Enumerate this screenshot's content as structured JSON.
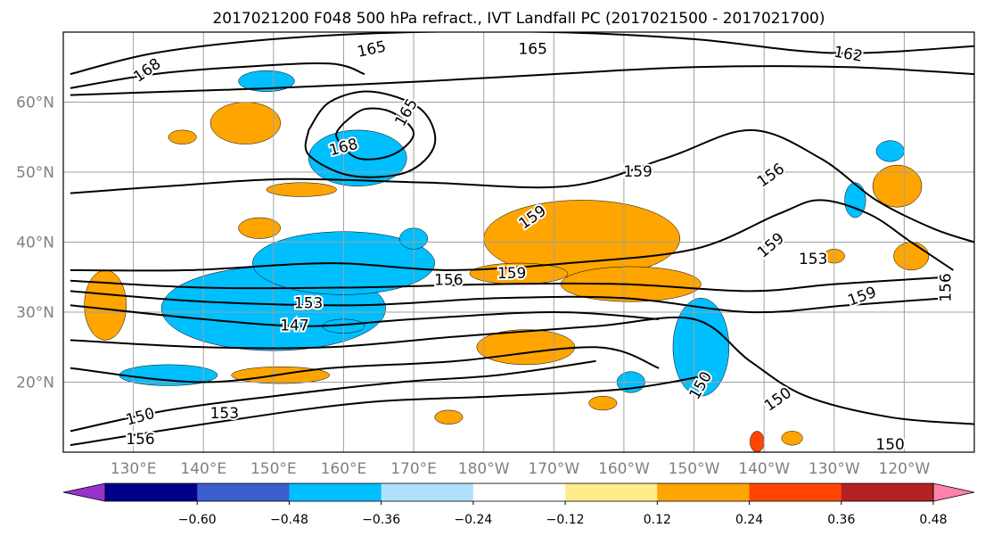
{
  "chart_data": {
    "type": "heatmap",
    "title": "2017021200 F048 500 hPa refract., IVT Landfall PC (2017021500 - 2017021700)",
    "map": {
      "projection": "equirectangular",
      "lon_range": [
        120,
        250
      ],
      "lat_range": [
        10,
        70
      ],
      "grid": true
    },
    "lat_ticks": [
      {
        "value": 60,
        "label": "60°N"
      },
      {
        "value": 50,
        "label": "50°N"
      },
      {
        "value": 40,
        "label": "40°N"
      },
      {
        "value": 30,
        "label": "30°N"
      },
      {
        "value": 20,
        "label": "20°N"
      }
    ],
    "lon_ticks": [
      {
        "value": 130,
        "label": "130°E"
      },
      {
        "value": 140,
        "label": "140°E"
      },
      {
        "value": 150,
        "label": "150°E"
      },
      {
        "value": 160,
        "label": "160°E"
      },
      {
        "value": 170,
        "label": "170°E"
      },
      {
        "value": 180,
        "label": "180°W"
      },
      {
        "value": 190,
        "label": "170°W"
      },
      {
        "value": 200,
        "label": "160°W"
      },
      {
        "value": 210,
        "label": "150°W"
      },
      {
        "value": 220,
        "label": "140°W"
      },
      {
        "value": 230,
        "label": "130°W"
      },
      {
        "value": 240,
        "label": "120°W"
      }
    ],
    "colorbar": {
      "levels": [
        -0.72,
        -0.6,
        -0.48,
        -0.36,
        -0.24,
        -0.12,
        0.12,
        0.24,
        0.36,
        0.48,
        0.6,
        0.72
      ],
      "colors": [
        "#9932cc",
        "#00008b",
        "#3a5fcd",
        "#00bfff",
        "#b0e2ff",
        "#ffffff",
        "#ffec8b",
        "#ffa500",
        "#ff4500",
        "#b22222",
        "#ff82ab"
      ],
      "extend": "both",
      "tick_labels": [
        "−0.60",
        "−0.48",
        "−0.36",
        "−0.24",
        "−0.12",
        "0.12",
        "0.24",
        "0.36",
        "0.48",
        "0.60"
      ]
    },
    "shaded_regions": [
      {
        "lon": 151,
        "lat": 30,
        "rlon": 7,
        "rlat": 2.5,
        "value": -0.62
      },
      {
        "lon": 150,
        "lat": 30.5,
        "rlon": 12,
        "rlat": 4,
        "value": -0.45
      },
      {
        "lon": 150,
        "lat": 30.5,
        "rlon": 16,
        "rlat": 6,
        "value": -0.3
      },
      {
        "lon": 160,
        "lat": 36,
        "rlon": 5,
        "rlat": 1.5,
        "value": -0.55
      },
      {
        "lon": 160,
        "lat": 36.5,
        "rlon": 9,
        "rlat": 3,
        "value": -0.4
      },
      {
        "lon": 160,
        "lat": 37,
        "rlon": 13,
        "rlat": 4.5,
        "value": -0.26
      },
      {
        "lon": 162,
        "lat": 51.5,
        "rlon": 5,
        "rlat": 2.5,
        "value": -0.4
      },
      {
        "lon": 162,
        "lat": 52,
        "rlon": 7,
        "rlat": 4,
        "value": -0.26
      },
      {
        "lon": 149,
        "lat": 63,
        "rlon": 4,
        "rlat": 1.5,
        "value": -0.26
      },
      {
        "lon": 135,
        "lat": 21,
        "rlon": 7,
        "rlat": 1.5,
        "value": -0.26
      },
      {
        "lon": 160,
        "lat": 28,
        "rlon": 3,
        "rlat": 1,
        "value": -0.26
      },
      {
        "lon": 170,
        "lat": 40.5,
        "rlon": 2,
        "rlat": 1.5,
        "value": -0.26
      },
      {
        "lon": 211,
        "lat": 26,
        "rlon": 2,
        "rlat": 5,
        "value": -0.45
      },
      {
        "lon": 211,
        "lat": 25,
        "rlon": 4,
        "rlat": 7,
        "value": -0.26
      },
      {
        "lon": 201,
        "lat": 20,
        "rlon": 2,
        "rlat": 1.5,
        "value": -0.26
      },
      {
        "lon": 238,
        "lat": 53,
        "rlon": 2,
        "rlat": 1.5,
        "value": -0.26
      },
      {
        "lon": 233,
        "lat": 46,
        "rlon": 1.5,
        "rlat": 2.5,
        "value": -0.26
      },
      {
        "lon": 195,
        "lat": 40,
        "rlon": 7,
        "rlat": 2.5,
        "value": 0.55
      },
      {
        "lon": 194,
        "lat": 40,
        "rlon": 10,
        "rlat": 4,
        "value": 0.4
      },
      {
        "lon": 194,
        "lat": 40.5,
        "rlon": 14,
        "rlat": 5.5,
        "value": 0.28
      },
      {
        "lon": 203,
        "lat": 34.5,
        "rlon": 5,
        "rlat": 1.5,
        "value": 0.5
      },
      {
        "lon": 201,
        "lat": 34,
        "rlon": 10,
        "rlat": 2.5,
        "value": 0.3
      },
      {
        "lon": 185,
        "lat": 35.5,
        "rlon": 7,
        "rlat": 1.5,
        "value": 0.3
      },
      {
        "lon": 186,
        "lat": 25,
        "rlon": 7,
        "rlat": 2.5,
        "value": 0.3
      },
      {
        "lon": 146,
        "lat": 57,
        "rlon": 4,
        "rlat": 2,
        "value": 0.4
      },
      {
        "lon": 146,
        "lat": 57,
        "rlon": 5,
        "rlat": 3,
        "value": 0.28
      },
      {
        "lon": 126,
        "lat": 31,
        "rlon": 3,
        "rlat": 5,
        "value": 0.28
      },
      {
        "lon": 151,
        "lat": 21,
        "rlon": 7,
        "rlat": 1.2,
        "value": 0.28
      },
      {
        "lon": 154,
        "lat": 47.5,
        "rlon": 5,
        "rlat": 1,
        "value": 0.28
      },
      {
        "lon": 148,
        "lat": 42,
        "rlon": 3,
        "rlat": 1.5,
        "value": 0.28
      },
      {
        "lon": 137,
        "lat": 55,
        "rlon": 2,
        "rlat": 1,
        "value": 0.28
      },
      {
        "lon": 239,
        "lat": 47.5,
        "rlon": 2,
        "rlat": 2,
        "value": 0.55
      },
      {
        "lon": 239,
        "lat": 48,
        "rlon": 3.5,
        "rlat": 3,
        "value": 0.35
      },
      {
        "lon": 241,
        "lat": 38,
        "rlon": 2.5,
        "rlat": 2,
        "value": 0.28
      },
      {
        "lon": 219,
        "lat": 11.5,
        "rlon": 1,
        "rlat": 1.5,
        "value": 0.4
      },
      {
        "lon": 224,
        "lat": 12,
        "rlon": 1.5,
        "rlat": 1,
        "value": 0.28
      },
      {
        "lon": 197,
        "lat": 17,
        "rlon": 2,
        "rlat": 1,
        "value": 0.28
      },
      {
        "lon": 175,
        "lat": 15,
        "rlon": 2,
        "rlat": 1,
        "value": 0.28
      },
      {
        "lon": 230,
        "lat": 38,
        "rlon": 1.5,
        "rlat": 1,
        "value": 0.28
      }
    ],
    "contours": {
      "variable": "500 hPa refractivity",
      "lines": [
        {
          "level": 165,
          "points": [
            [
              121,
              64
            ],
            [
              133,
              67
            ],
            [
              150,
              69
            ],
            [
              170,
              70
            ],
            [
              190,
              70
            ],
            [
              210,
              69
            ],
            [
              230,
              67
            ],
            [
              250,
              68
            ]
          ]
        },
        {
          "level": 168,
          "points": [
            [
              121,
              62
            ],
            [
              133,
              64
            ],
            [
              145,
              65
            ],
            [
              158,
              65.5
            ],
            [
              163,
              64
            ]
          ]
        },
        {
          "level": 162,
          "points": [
            [
              121,
              61
            ],
            [
              135,
              61.5
            ],
            [
              150,
              62
            ],
            [
              172,
              63
            ],
            [
              190,
              64
            ],
            [
              210,
              65
            ],
            [
              232,
              65
            ],
            [
              250,
              64
            ]
          ]
        },
        {
          "level": 168,
          "points": [
            [
              160,
              57
            ],
            [
              163,
              59
            ],
            [
              167,
              58.5
            ],
            [
              170,
              55.5
            ],
            [
              167,
              52.5
            ],
            [
              162,
              52
            ],
            [
              159,
              55
            ],
            [
              160,
              57
            ]
          ]
        },
        {
          "level": 165,
          "points": [
            [
              155,
              56
            ],
            [
              158,
              60
            ],
            [
              164,
              61.5
            ],
            [
              171,
              59
            ],
            [
              173,
              54
            ],
            [
              169,
              50
            ],
            [
              161,
              49.5
            ],
            [
              155,
              52.5
            ],
            [
              155,
              56
            ]
          ]
        },
        {
          "level": 159,
          "points": [
            [
              121,
              47
            ],
            [
              135,
              48
            ],
            [
              152,
              49
            ],
            [
              172,
              48.5
            ],
            [
              192,
              48
            ],
            [
              206,
              52
            ],
            [
              218,
              56
            ],
            [
              228,
              52
            ],
            [
              236,
              46
            ],
            [
              244,
              42
            ],
            [
              250,
              40
            ]
          ]
        },
        {
          "level": 156,
          "points": [
            [
              121,
              36
            ],
            [
              138,
              36
            ],
            [
              158,
              37
            ],
            [
              175,
              36
            ],
            [
              192,
              37
            ],
            [
              210,
              39
            ],
            [
              222,
              44
            ],
            [
              228,
              46
            ],
            [
              235,
              44
            ],
            [
              241,
              40
            ],
            [
              247,
              36
            ]
          ]
        },
        {
          "level": 153,
          "points": [
            [
              121,
              34.5
            ],
            [
              140,
              33.5
            ],
            [
              160,
              33.5
            ],
            [
              182,
              34
            ],
            [
              200,
              34
            ],
            [
              218,
              33
            ],
            [
              230,
              34
            ],
            [
              246,
              35
            ]
          ]
        },
        {
          "level": 150,
          "points": [
            [
              121,
              33
            ],
            [
              140,
              31.5
            ],
            [
              162,
              31
            ],
            [
              182,
              32
            ],
            [
              200,
              32
            ],
            [
              218,
              30
            ],
            [
              232,
              31
            ],
            [
              246,
              32
            ]
          ]
        },
        {
          "level": 147,
          "points": [
            [
              121,
              31
            ],
            [
              140,
              29
            ],
            [
              155,
              28
            ],
            [
              170,
              29
            ],
            [
              190,
              30
            ],
            [
              205,
              29
            ]
          ]
        },
        {
          "level": 150,
          "points": [
            [
              121,
              26
            ],
            [
              140,
              25
            ],
            [
              158,
              25
            ],
            [
              176,
              26.5
            ],
            [
              196,
              28
            ],
            [
              210,
              29
            ],
            [
              218,
              23
            ],
            [
              226,
              18
            ],
            [
              238,
              15
            ],
            [
              250,
              14
            ]
          ]
        },
        {
          "level": 153,
          "points": [
            [
              121,
              22
            ],
            [
              140,
              20
            ],
            [
              158,
              22
            ],
            [
              176,
              23
            ],
            [
              196,
              25
            ],
            [
              205,
              22
            ]
          ]
        },
        {
          "level": 150,
          "points": [
            [
              121,
              13
            ],
            [
              135,
              16
            ],
            [
              150,
              18
            ],
            [
              168,
              20
            ],
            [
              182,
              21
            ],
            [
              196,
              23
            ]
          ]
        },
        {
          "level": 156,
          "points": [
            [
              121,
              11
            ],
            [
              140,
              14
            ],
            [
              162,
              17
            ],
            [
              182,
              18
            ],
            [
              200,
              19
            ],
            [
              212,
              21
            ]
          ]
        }
      ],
      "labels": [
        {
          "text": "165",
          "lon": 164,
          "lat": 67.5,
          "angle": -12
        },
        {
          "text": "165",
          "lon": 187,
          "lat": 67.5,
          "angle": 0
        },
        {
          "text": "162",
          "lon": 232,
          "lat": 66.8,
          "angle": 10
        },
        {
          "text": "168",
          "lon": 132,
          "lat": 64.5,
          "angle": -35
        },
        {
          "text": "168",
          "lon": 160,
          "lat": 53.5,
          "angle": -15
        },
        {
          "text": "165",
          "lon": 169,
          "lat": 58.5,
          "angle": -60
        },
        {
          "text": "159",
          "lon": 202,
          "lat": 50,
          "angle": 0
        },
        {
          "text": "159",
          "lon": 187,
          "lat": 43.5,
          "angle": -35
        },
        {
          "text": "156",
          "lon": 221,
          "lat": 49.5,
          "angle": -35
        },
        {
          "text": "159",
          "lon": 221,
          "lat": 39.5,
          "angle": -40
        },
        {
          "text": "153",
          "lon": 227,
          "lat": 37.5,
          "angle": 0
        },
        {
          "text": "159",
          "lon": 234,
          "lat": 32.2,
          "angle": -20
        },
        {
          "text": "156",
          "lon": 246,
          "lat": 33.5,
          "angle": -90
        },
        {
          "text": "156",
          "lon": 175,
          "lat": 34.5,
          "angle": 0
        },
        {
          "text": "159",
          "lon": 184,
          "lat": 35.5,
          "angle": 0
        },
        {
          "text": "153",
          "lon": 155,
          "lat": 31.2,
          "angle": 0
        },
        {
          "text": "147",
          "lon": 153,
          "lat": 28,
          "angle": 0
        },
        {
          "text": "150",
          "lon": 211,
          "lat": 19.5,
          "angle": -60
        },
        {
          "text": "150",
          "lon": 222,
          "lat": 17.5,
          "angle": -35
        },
        {
          "text": "153",
          "lon": 143,
          "lat": 15.5,
          "angle": 0
        },
        {
          "text": "150",
          "lon": 131,
          "lat": 15,
          "angle": -15
        },
        {
          "text": "156",
          "lon": 131,
          "lat": 11.8,
          "angle": 0
        },
        {
          "text": "150",
          "lon": 238,
          "lat": 11,
          "angle": 0
        }
      ]
    }
  }
}
